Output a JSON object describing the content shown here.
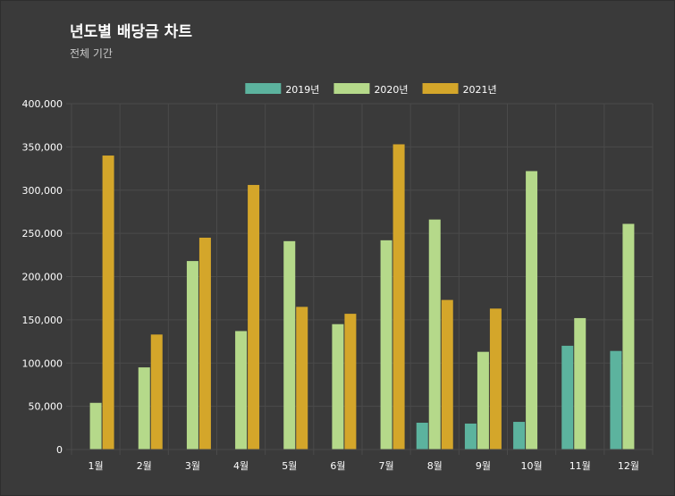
{
  "title": "년도별 배당금 차트",
  "subtitle": "전체 기간",
  "colors": {
    "background": "#3a3a3a",
    "grid": "#4a4a4a",
    "axis_text": "#ffffff"
  },
  "chart_data": {
    "type": "bar",
    "title": "년도별 배당금 차트",
    "subtitle": "전체 기간",
    "xlabel": "",
    "ylabel": "",
    "ylim": [
      0,
      400000
    ],
    "yticks": [
      0,
      50000,
      100000,
      150000,
      200000,
      250000,
      300000,
      350000,
      400000
    ],
    "ytick_labels": [
      "0",
      "50,000",
      "100,000",
      "150,000",
      "200,000",
      "250,000",
      "300,000",
      "350,000",
      "400,000"
    ],
    "grid": true,
    "legend_position": "top-center",
    "categories": [
      "1월",
      "2월",
      "3월",
      "4월",
      "5월",
      "6월",
      "7월",
      "8월",
      "9월",
      "10월",
      "11월",
      "12월"
    ],
    "series": [
      {
        "name": "2019년",
        "color": "#5cb39e",
        "values": [
          0,
          0,
          0,
          0,
          0,
          0,
          0,
          31000,
          30000,
          32000,
          120000,
          114000
        ]
      },
      {
        "name": "2020년",
        "color": "#b5d98a",
        "values": [
          54000,
          95000,
          218000,
          137000,
          241000,
          145000,
          242000,
          266000,
          113000,
          322000,
          152000,
          261000
        ]
      },
      {
        "name": "2021년",
        "color": "#d4a62a",
        "values": [
          340000,
          133000,
          245000,
          306000,
          165000,
          157000,
          353000,
          173000,
          163000,
          0,
          0,
          0
        ]
      }
    ]
  }
}
